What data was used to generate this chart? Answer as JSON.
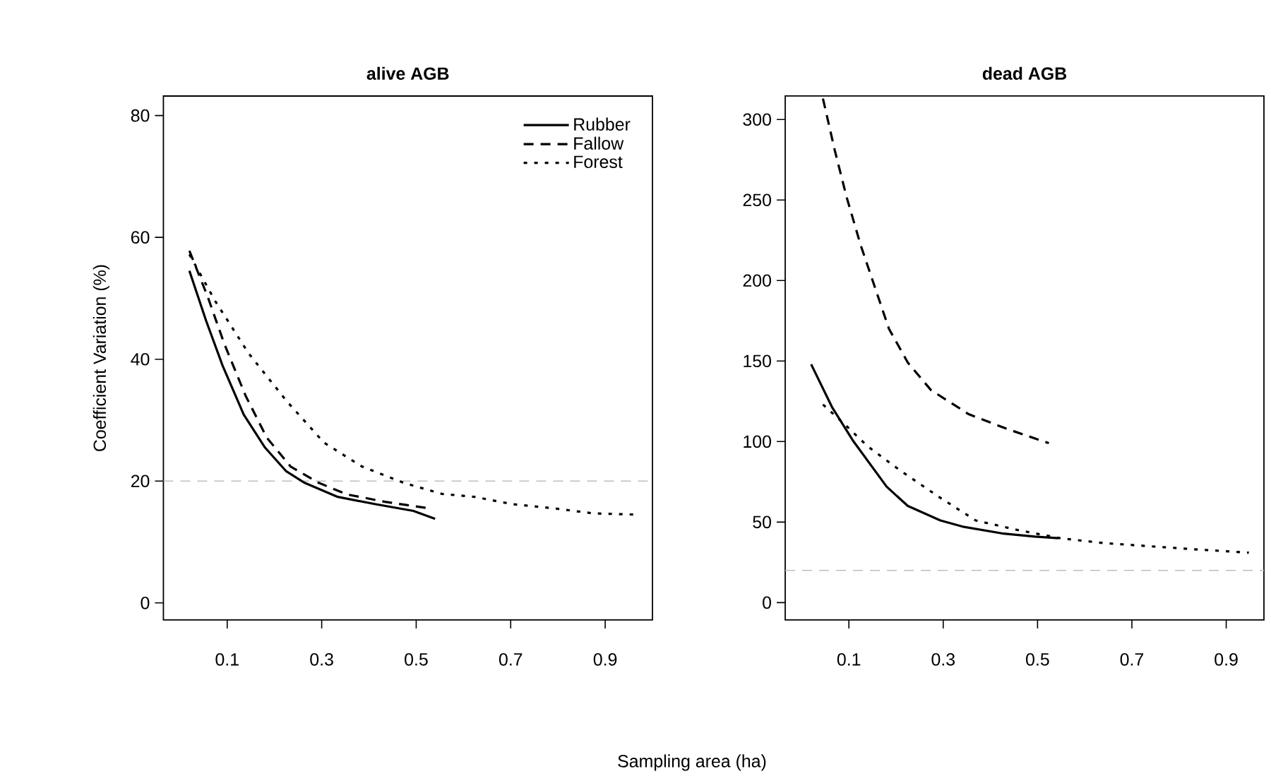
{
  "chart_data": [
    {
      "type": "line",
      "title": "alive AGB",
      "xlabel": "Sampling area (ha)",
      "ylabel": "Coefficient Variation (%)",
      "xlim": [
        -0.035,
        1.0
      ],
      "ylim": [
        -2.8,
        83.2
      ],
      "xticks": [
        0.1,
        0.3,
        0.5,
        0.7,
        0.9
      ],
      "yticks": [
        0,
        20,
        40,
        60,
        80
      ],
      "legend": "top right",
      "grid": false,
      "ref_lines": [
        {
          "axis": "y",
          "value": 20,
          "color": "#bebebe",
          "line_style": "dashed"
        }
      ],
      "series": [
        {
          "name": "Rubber",
          "color": "#000000",
          "line_style": "solid",
          "x": [
            0.02,
            0.055,
            0.09,
            0.135,
            0.18,
            0.225,
            0.264,
            0.334,
            0.414,
            0.494,
            0.54
          ],
          "values": [
            54.5,
            46.4,
            39.0,
            30.9,
            25.5,
            21.6,
            19.7,
            17.4,
            16.2,
            15.1,
            13.8
          ]
        },
        {
          "name": "Fallow",
          "color": "#000000",
          "line_style": "dashed",
          "x": [
            0.02,
            0.059,
            0.094,
            0.139,
            0.184,
            0.234,
            0.294,
            0.354,
            0.434,
            0.52
          ],
          "values": [
            57.8,
            50.2,
            42.5,
            34.0,
            27.1,
            22.4,
            19.7,
            17.8,
            16.6,
            15.6
          ]
        },
        {
          "name": "Forest",
          "color": "#000000",
          "line_style": "dotted",
          "x": [
            0.02,
            0.075,
            0.145,
            0.225,
            0.305,
            0.385,
            0.474,
            0.554,
            0.624,
            0.704,
            0.794,
            0.874,
            0.963
          ],
          "values": [
            57.2,
            49.5,
            41.0,
            33.2,
            26.3,
            22.4,
            19.7,
            17.9,
            17.4,
            16.2,
            15.5,
            14.7,
            14.5
          ]
        }
      ]
    },
    {
      "type": "line",
      "title": "dead AGB",
      "xlim": [
        -0.035,
        0.98
      ],
      "ylim": [
        -10.8,
        314.6
      ],
      "xticks": [
        0.1,
        0.3,
        0.5,
        0.7,
        0.9
      ],
      "yticks": [
        0,
        50,
        100,
        150,
        200,
        250,
        300
      ],
      "grid": false,
      "ref_lines": [
        {
          "axis": "y",
          "value": 20,
          "color": "#bebebe",
          "line_style": "dashed"
        }
      ],
      "series": [
        {
          "color": "#000000",
          "line_style": "solid",
          "x": [
            0.02,
            0.065,
            0.11,
            0.18,
            0.225,
            0.294,
            0.344,
            0.424,
            0.494,
            0.544
          ],
          "values": [
            148,
            121,
            100,
            72,
            60,
            51,
            47,
            43,
            41,
            40
          ]
        },
        {
          "color": "#000000",
          "line_style": "dashed",
          "x": [
            0.045,
            0.07,
            0.095,
            0.125,
            0.155,
            0.185,
            0.225,
            0.274,
            0.354,
            0.434,
            0.524
          ],
          "values": [
            313,
            281,
            252,
            222,
            196,
            170,
            149,
            132,
            117,
            108,
            99
          ]
        },
        {
          "color": "#000000",
          "line_style": "dotted",
          "x": [
            0.045,
            0.09,
            0.14,
            0.209,
            0.289,
            0.369,
            0.459,
            0.548,
            0.638,
            0.738,
            0.838,
            0.948
          ],
          "values": [
            123,
            111,
            97,
            82,
            66,
            51,
            45,
            40,
            37,
            35,
            33,
            31
          ]
        }
      ]
    }
  ]
}
